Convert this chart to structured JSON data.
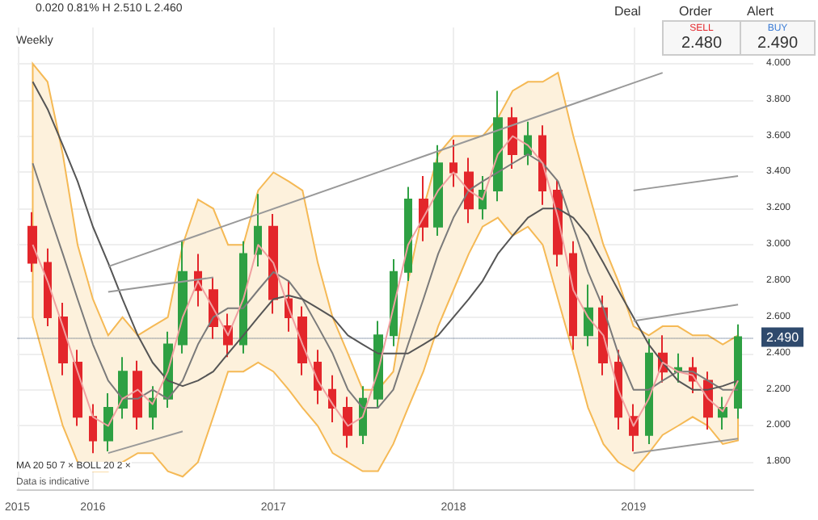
{
  "chart_data": {
    "type": "candlestick",
    "x": [
      "2015-09",
      "2015-10",
      "2015-11",
      "2015-12",
      "2016-01",
      "2016-02",
      "2016-03",
      "2016-04",
      "2016-05",
      "2016-06",
      "2016-07",
      "2016-08",
      "2016-09",
      "2016-10",
      "2016-11",
      "2016-12",
      "2017-01",
      "2017-02",
      "2017-03",
      "2017-04",
      "2017-05",
      "2017-06",
      "2017-07",
      "2017-08",
      "2017-09",
      "2017-10",
      "2017-11",
      "2017-12",
      "2018-01",
      "2018-02",
      "2018-03",
      "2018-04",
      "2018-05",
      "2018-06",
      "2018-07",
      "2018-08",
      "2018-09",
      "2018-10",
      "2018-11",
      "2018-12",
      "2019-01",
      "2019-02",
      "2019-03",
      "2019-04",
      "2019-05",
      "2019-06",
      "2019-07",
      "2019-08"
    ],
    "ohlc": [
      [
        3.1,
        3.18,
        2.85,
        2.9
      ],
      [
        2.9,
        2.98,
        2.55,
        2.6
      ],
      [
        2.6,
        2.68,
        2.28,
        2.35
      ],
      [
        2.35,
        2.42,
        2.0,
        2.05
      ],
      [
        2.05,
        2.12,
        1.85,
        1.92
      ],
      [
        1.92,
        2.18,
        1.86,
        2.1
      ],
      [
        2.1,
        2.38,
        2.04,
        2.3
      ],
      [
        2.3,
        2.36,
        1.98,
        2.05
      ],
      [
        2.05,
        2.22,
        1.98,
        2.15
      ],
      [
        2.15,
        2.52,
        2.1,
        2.45
      ],
      [
        2.45,
        3.02,
        2.4,
        2.85
      ],
      [
        2.85,
        2.95,
        2.66,
        2.75
      ],
      [
        2.75,
        2.82,
        2.48,
        2.55
      ],
      [
        2.55,
        2.62,
        2.38,
        2.45
      ],
      [
        2.45,
        3.02,
        2.4,
        2.95
      ],
      [
        2.95,
        3.28,
        2.88,
        3.1
      ],
      [
        3.1,
        3.17,
        2.62,
        2.7
      ],
      [
        2.7,
        2.8,
        2.52,
        2.6
      ],
      [
        2.6,
        2.66,
        2.28,
        2.35
      ],
      [
        2.35,
        2.42,
        2.12,
        2.2
      ],
      [
        2.2,
        2.28,
        2.02,
        2.1
      ],
      [
        2.1,
        2.16,
        1.88,
        1.95
      ],
      [
        1.95,
        2.22,
        1.9,
        2.15
      ],
      [
        2.15,
        2.58,
        2.1,
        2.5
      ],
      [
        2.5,
        2.92,
        2.44,
        2.85
      ],
      [
        2.85,
        3.32,
        2.8,
        3.25
      ],
      [
        3.25,
        3.38,
        3.02,
        3.1
      ],
      [
        3.1,
        3.55,
        3.05,
        3.45
      ],
      [
        3.45,
        3.58,
        3.32,
        3.4
      ],
      [
        3.4,
        3.48,
        3.12,
        3.2
      ],
      [
        3.2,
        3.38,
        3.14,
        3.3
      ],
      [
        3.3,
        3.85,
        3.24,
        3.7
      ],
      [
        3.7,
        3.76,
        3.42,
        3.5
      ],
      [
        3.5,
        3.68,
        3.44,
        3.6
      ],
      [
        3.6,
        3.66,
        3.22,
        3.3
      ],
      [
        3.3,
        3.36,
        2.88,
        2.95
      ],
      [
        2.95,
        3.02,
        2.42,
        2.5
      ],
      [
        2.5,
        2.78,
        2.44,
        2.65
      ],
      [
        2.65,
        2.72,
        2.28,
        2.35
      ],
      [
        2.35,
        2.42,
        1.98,
        2.05
      ],
      [
        2.05,
        2.12,
        1.86,
        1.95
      ],
      [
        1.95,
        2.48,
        1.9,
        2.4
      ],
      [
        2.4,
        2.5,
        2.24,
        2.3
      ],
      [
        2.3,
        2.4,
        2.24,
        2.32
      ],
      [
        2.32,
        2.38,
        2.18,
        2.25
      ],
      [
        2.25,
        2.3,
        1.98,
        2.05
      ],
      [
        2.05,
        2.16,
        1.98,
        2.1
      ],
      [
        2.1,
        2.56,
        2.04,
        2.49
      ]
    ],
    "series": [
      {
        "type": "line",
        "color": "#7a7a7a",
        "values": [
          3.45,
          3.2,
          2.95,
          2.7,
          2.45,
          2.25,
          2.15,
          2.15,
          2.2,
          2.15,
          2.25,
          2.45,
          2.6,
          2.65,
          2.65,
          2.75,
          2.85,
          2.8,
          2.7,
          2.55,
          2.4,
          2.2,
          2.1,
          2.1,
          2.2,
          2.45,
          2.7,
          2.95,
          3.15,
          3.3,
          3.35,
          3.4,
          3.45,
          3.5,
          3.45,
          3.35,
          3.1,
          2.85,
          2.65,
          2.4,
          2.2,
          2.2,
          2.25,
          2.3,
          2.3,
          2.25,
          2.2,
          2.2
        ],
        "lower": [
          2.6,
          2.3,
          2.0,
          1.8,
          1.75,
          1.75,
          1.8,
          1.85,
          1.85,
          1.75,
          1.72,
          1.8,
          2.05,
          2.3,
          2.3,
          2.35,
          2.3,
          2.2,
          2.1,
          2.0,
          1.85,
          1.8,
          1.75,
          1.75,
          1.9,
          2.1,
          2.3,
          2.55,
          2.75,
          2.95,
          3.1,
          3.15,
          3.05,
          3.1,
          3.0,
          2.7,
          2.4,
          2.1,
          1.9,
          1.8,
          1.75,
          1.85,
          1.95,
          2.0,
          2.05,
          2.0,
          1.9,
          1.92
        ],
        "upper": [
          4.0,
          3.9,
          3.5,
          3.0,
          2.7,
          2.5,
          2.6,
          2.5,
          2.55,
          2.6,
          3.0,
          3.25,
          3.2,
          3.0,
          3.0,
          3.3,
          3.4,
          3.35,
          3.3,
          2.9,
          2.6,
          2.4,
          2.2,
          2.2,
          2.3,
          2.8,
          3.2,
          3.5,
          3.6,
          3.6,
          3.6,
          3.7,
          3.85,
          3.9,
          3.9,
          3.95,
          3.6,
          3.3,
          3.0,
          2.8,
          2.55,
          2.5,
          2.55,
          2.55,
          2.5,
          2.5,
          2.45,
          2.5
        ]
      },
      {
        "type": "line",
        "color": "#555555",
        "values": [
          3.9,
          3.75,
          3.55,
          3.35,
          3.1,
          2.9,
          2.7,
          2.5,
          2.35,
          2.25,
          2.22,
          2.25,
          2.3,
          2.4,
          2.5,
          2.6,
          2.7,
          2.72,
          2.7,
          2.65,
          2.6,
          2.5,
          2.45,
          2.4,
          2.4,
          2.4,
          2.45,
          2.5,
          2.6,
          2.7,
          2.8,
          2.95,
          3.05,
          3.15,
          3.2,
          3.2,
          3.15,
          3.05,
          2.9,
          2.75,
          2.6,
          2.45,
          2.35,
          2.25,
          2.2,
          2.2,
          2.22,
          2.25
        ]
      },
      {
        "type": "line",
        "color": "#f0a0a0",
        "values": [
          3.0,
          2.8,
          2.55,
          2.3,
          2.05,
          2.0,
          2.15,
          2.2,
          2.12,
          2.3,
          2.6,
          2.8,
          2.65,
          2.5,
          2.7,
          3.0,
          2.9,
          2.65,
          2.45,
          2.25,
          2.12,
          2.0,
          2.05,
          2.3,
          2.65,
          3.0,
          3.15,
          3.3,
          3.4,
          3.3,
          3.25,
          3.5,
          3.6,
          3.55,
          3.45,
          3.15,
          2.75,
          2.6,
          2.5,
          2.2,
          2.0,
          2.15,
          2.35,
          2.3,
          2.28,
          2.15,
          2.08,
          2.25
        ]
      },
      {
        "type": "line",
        "color": "#999999",
        "x": [
          "2016-02",
          "2019-03"
        ],
        "values": [
          2.88,
          3.95
        ]
      },
      {
        "type": "line",
        "color": "#999999",
        "x": [
          "2016-02",
          "2016-09"
        ],
        "values": [
          2.74,
          2.82
        ]
      },
      {
        "type": "line",
        "color": "#999999",
        "x": [
          "2016-02",
          "2016-07"
        ],
        "values": [
          1.85,
          1.97
        ]
      },
      {
        "type": "line",
        "color": "#999999",
        "x": [
          "2019-01",
          "2019-08"
        ],
        "values": [
          1.85,
          1.93
        ]
      },
      {
        "type": "line",
        "color": "#999999",
        "x": [
          "2019-01",
          "2019-08"
        ],
        "values": [
          2.58,
          2.67
        ]
      },
      {
        "type": "line",
        "color": "#999999",
        "x": [
          "2019-01",
          "2019-08"
        ],
        "values": [
          3.3,
          3.38
        ]
      }
    ],
    "xlim": [
      "2015-08",
      "2019-09"
    ],
    "xticks": [
      {
        "value": "2015-08",
        "label": "2015"
      },
      "2016",
      "2017",
      "2018",
      "2019"
    ],
    "ylim": [
      1.65,
      4.2
    ],
    "yticks": [
      {
        "value": 1.8,
        "label": "1.800"
      },
      {
        "value": 2.0,
        "label": "2.000"
      },
      {
        "value": 2.2,
        "label": "2.200"
      },
      {
        "value": 2.4,
        "label": "2.400"
      },
      {
        "value": 2.6,
        "label": "2.600"
      },
      {
        "value": 2.8,
        "label": "2.800"
      },
      {
        "value": 3.0,
        "label": "3.000"
      },
      {
        "value": 3.2,
        "label": "3.200"
      },
      {
        "value": 3.4,
        "label": "3.400"
      },
      {
        "value": 3.6,
        "label": "3.600"
      },
      {
        "value": 3.8,
        "label": "3.800"
      },
      {
        "value": 4.0,
        "label": "4.000"
      }
    ],
    "ref_lines": [
      {
        "axis": "y",
        "value": 2.49,
        "label": "2.490",
        "color": "#2f4a6d"
      }
    ],
    "grid": true,
    "annotations": [
      "0.020 0.81% H 2.510 L 2.460",
      "Weekly",
      "Deal",
      "Order",
      "Alert",
      "SELL",
      "2.480",
      "BUY",
      "2.490",
      "MA 20 50 7 × BOLL 20 2 ×",
      "Data is indicative"
    ]
  }
}
